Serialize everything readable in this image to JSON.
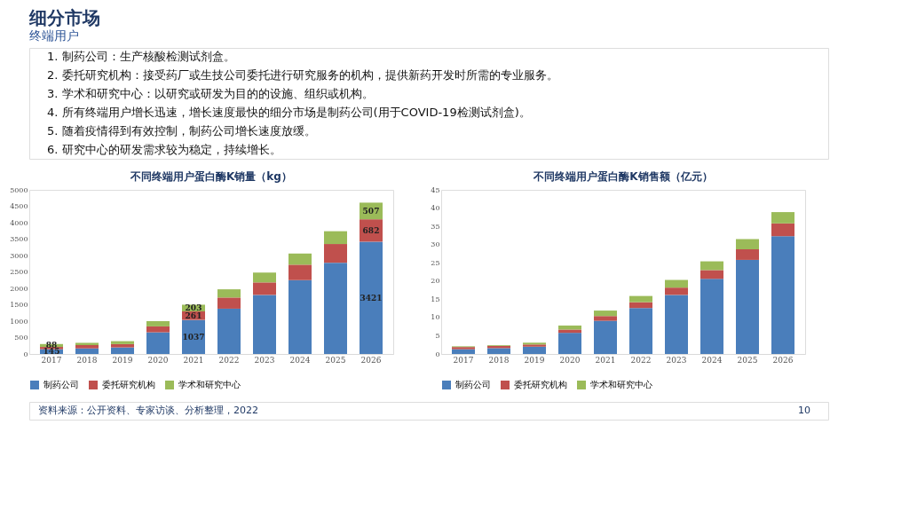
{
  "chart_data": [
    {
      "type": "other",
      "title": "细分市场",
      "subtitle": "终端用户",
      "annotations": [
        "1. 制药公司：生产核酸检测试剂盒。",
        "2. 委托研究机构：接受药厂或生技公司委托进行研究服务的机构，提供新药开发时所需的专业服务。",
        "3. 学术和研究中心：以研究或研发为目的的设施、组织或机构。",
        "4. 所有终端用户增长迅速，增长速度最快的细分市场是制药公司(用于COVID-19检测试剂盒)。",
        "5. 随着疫情得到有效控制，制药公司增长速度放缓。",
        "6. 研究中心的研发需求较为稳定，持续增长。"
      ]
    },
    {
      "type": "bar",
      "stacked": true,
      "title": "不同终端用户蛋白酶K销量（kg）",
      "legend": "bottom",
      "grid": false,
      "categories": [
        "2017",
        "2018",
        "2019",
        "2020",
        "2021",
        "2022",
        "2023",
        "2024",
        "2025",
        "2026"
      ],
      "ylim": [
        0,
        5000
      ],
      "yticks": [
        0,
        500,
        1000,
        1500,
        2000,
        2500,
        3000,
        3500,
        4000,
        4500,
        5000
      ],
      "series": [
        {
          "name": "制药公司",
          "color": "#4a7ebb",
          "values": [
            145,
            170,
            200,
            660,
            1037,
            1380,
            1800,
            2250,
            2780,
            3421
          ],
          "value_labels": [
            "145",
            null,
            null,
            null,
            "1037",
            null,
            null,
            null,
            null,
            "3421"
          ]
        },
        {
          "name": "委托研究机构",
          "color": "#c0504d",
          "values": [
            70,
            100,
            100,
            180,
            261,
            340,
            380,
            470,
            570,
            682
          ],
          "value_labels": [
            null,
            null,
            null,
            null,
            "261",
            null,
            null,
            null,
            null,
            "682"
          ]
        },
        {
          "name": "学术和研究中心",
          "color": "#9bbb59",
          "values": [
            88,
            70,
            90,
            160,
            203,
            250,
            300,
            340,
            390,
            507
          ],
          "value_labels": [
            "88",
            null,
            null,
            null,
            "203",
            null,
            null,
            null,
            null,
            "507"
          ]
        }
      ]
    },
    {
      "type": "bar",
      "stacked": true,
      "title": "不同终端用户蛋白酶K销售额（亿元）",
      "legend": "bottom",
      "grid": false,
      "categories": [
        "2017",
        "2018",
        "2019",
        "2020",
        "2021",
        "2022",
        "2023",
        "2024",
        "2025",
        "2026"
      ],
      "ylim": [
        0,
        45
      ],
      "yticks": [
        0,
        5,
        10,
        15,
        20,
        25,
        30,
        35,
        40,
        45
      ],
      "series": [
        {
          "name": "制药公司",
          "color": "#4a7ebb",
          "values": [
            1.3,
            1.6,
            2.0,
            5.8,
            9.1,
            12.6,
            16.2,
            20.6,
            25.8,
            32.3
          ]
        },
        {
          "name": "委托研究机构",
          "color": "#c0504d",
          "values": [
            0.6,
            0.6,
            0.6,
            0.9,
            1.3,
            1.6,
            2.0,
            2.4,
            2.9,
            3.5
          ]
        },
        {
          "name": "学术和研究中心",
          "color": "#9bbb59",
          "values": [
            0.2,
            0.2,
            0.5,
            1.1,
            1.5,
            1.7,
            2.1,
            2.4,
            2.8,
            3.1
          ]
        }
      ]
    },
    {
      "type": "other",
      "annotations": [
        "资料来源：公开资料、专家访谈、分析整理，2022",
        "10"
      ]
    }
  ]
}
